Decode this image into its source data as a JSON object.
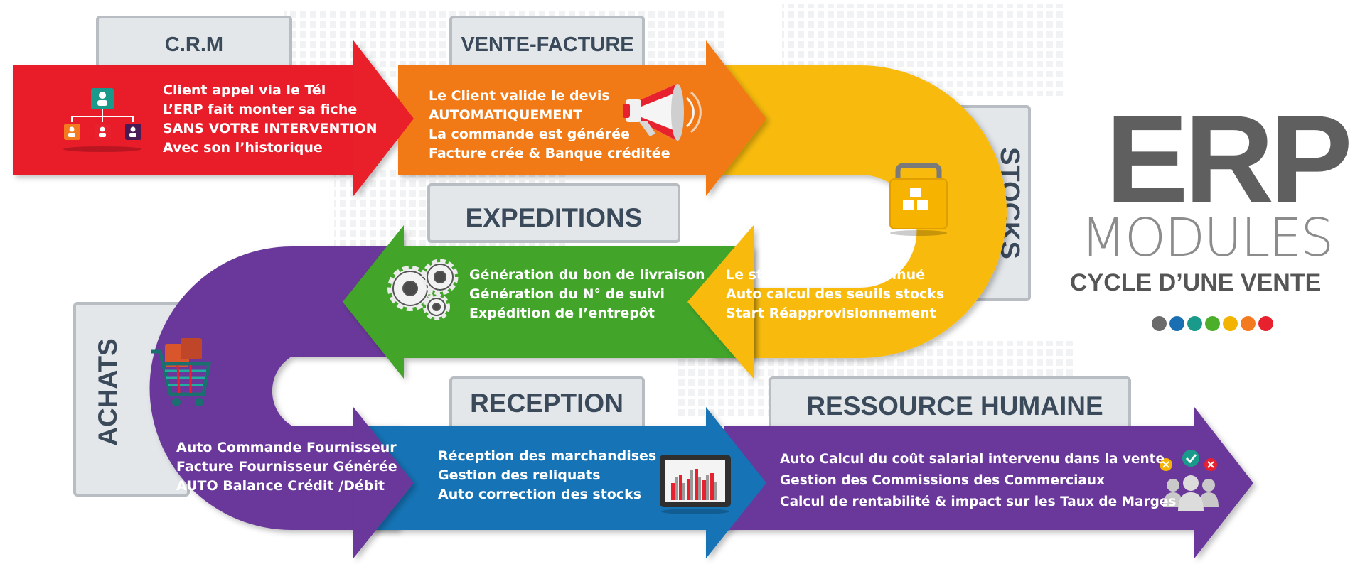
{
  "title": {
    "erp": "ERP",
    "modules": "MODULES",
    "subtitle": "CYCLE D’UNE VENTE"
  },
  "dot_colors": [
    "#6b6b6b",
    "#1a6fb3",
    "#1a9a8a",
    "#4caf2b",
    "#f2b400",
    "#f47a20",
    "#e8212e"
  ],
  "palette": {
    "red": "#e91f2a",
    "orange": "#f27a12",
    "yellow": "#f8bb0c",
    "green": "#43a52a",
    "purple": "#6a399a",
    "blue": "#1673b5",
    "tab_text": "#3b4a5a"
  },
  "modules": {
    "crm": {
      "name": "C.R.M",
      "icon": "org-chart-icon",
      "lines": [
        "Client appel via le Tél",
        "L’ERP fait monter sa fiche",
        "SANS VOTRE INTERVENTION",
        "Avec son l’historique"
      ]
    },
    "vente": {
      "name": "VENTE-FACTURE",
      "icon": "megaphone-icon",
      "lines": [
        "Le Client valide le devis",
        "AUTOMATIQUEMENT",
        "La commande est générée",
        "Facture crée & Banque créditée"
      ]
    },
    "stocks": {
      "name": "STOCKS",
      "icon": "package-box-icon",
      "lines": [
        "Le stock est Auto-diminué",
        "Auto calcul des seuils stocks",
        "Start Réapprovisionnement"
      ]
    },
    "expeditions": {
      "name": "EXPEDITIONS",
      "icon": "gears-icon",
      "lines": [
        "Génération du bon de livraison",
        "Génération du N° de suivi",
        "Expédition de l’entrepôt"
      ]
    },
    "achats": {
      "name": "ACHATS",
      "icon": "shopping-cart-icon",
      "lines": [
        "Auto Commande Fournisseur",
        "Facture Fournisseur Générée",
        "AUTO Balance Crédit  /Débit"
      ]
    },
    "reception": {
      "name": "RECEPTION",
      "icon": "tablet-chart-icon",
      "lines": [
        "Réception des marchandises",
        "Gestion des reliquats",
        "Auto correction des stocks"
      ]
    },
    "rh": {
      "name": "RESSOURCE HUMAINE",
      "icon": "team-icon",
      "lines": [
        "Auto Calcul du coût salarial intervenu dans la vente",
        "Gestion des Commissions des Commerciaux",
        "Calcul de rentabilité & impact sur les Taux de Marges"
      ]
    }
  }
}
